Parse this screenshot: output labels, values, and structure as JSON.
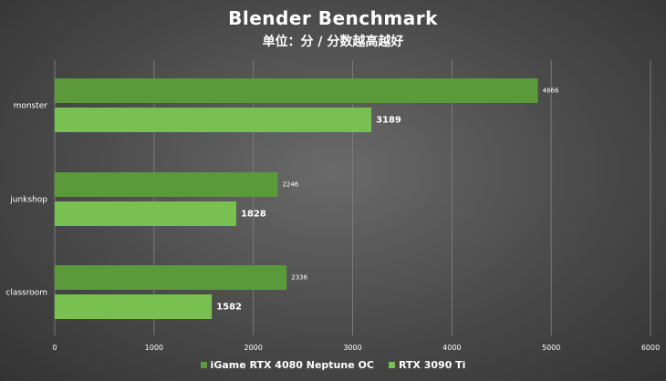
{
  "chart_data": {
    "type": "bar",
    "orientation": "horizontal",
    "title": "Blender Benchmark",
    "subtitle": "单位：分 / 分数越高越好",
    "categories": [
      "monster",
      "junkshop",
      "classroom"
    ],
    "series": [
      {
        "name": "iGame RTX 4080 Neptune OC",
        "values": [
          4866,
          2246,
          2336
        ],
        "color": "#5a9a3a"
      },
      {
        "name": "RTX 3090 Ti",
        "values": [
          3189,
          1828,
          1582
        ],
        "color": "#78c050"
      }
    ],
    "xlim": [
      0,
      6000
    ],
    "xticks": [
      0,
      1000,
      2000,
      3000,
      4000,
      5000,
      6000
    ],
    "grid": true,
    "legend_position": "bottom"
  }
}
